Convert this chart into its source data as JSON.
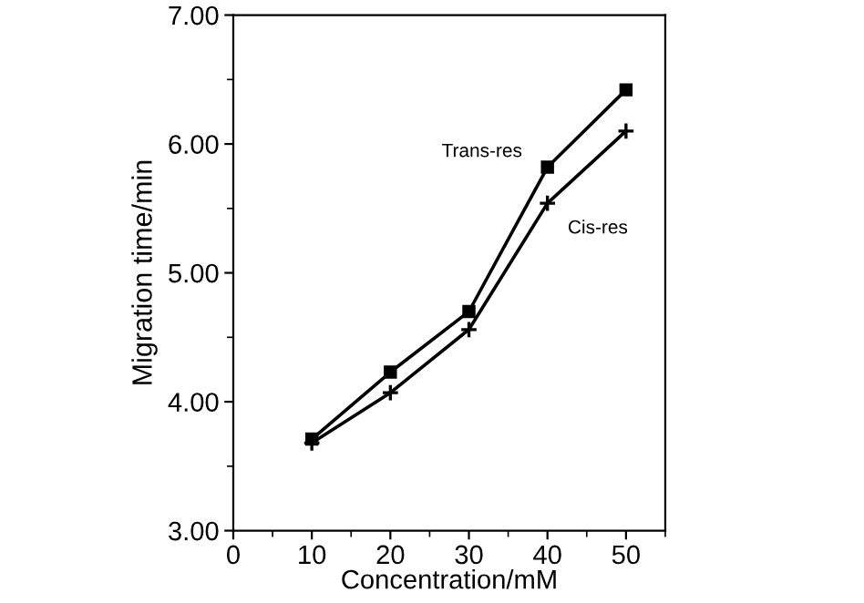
{
  "chart_data": {
    "type": "line",
    "xlabel": "Concentration/mM",
    "ylabel": "Migration time/min",
    "x": [
      10,
      20,
      30,
      40,
      50
    ],
    "series": [
      {
        "name": "Trans-res",
        "color": "#000000",
        "marker": "square",
        "values": [
          3.71,
          4.23,
          4.7,
          5.82,
          6.42
        ]
      },
      {
        "name": "Cis-res",
        "color": "#000000",
        "marker": "cross",
        "values": [
          3.68,
          4.07,
          4.56,
          5.54,
          6.1
        ]
      }
    ],
    "xlim": [
      0,
      55
    ],
    "xticks": [
      0,
      10,
      20,
      30,
      40,
      50
    ],
    "ylim": [
      3,
      7
    ],
    "yticks": [
      {
        "value": 3,
        "label": "3.00"
      },
      {
        "value": 4,
        "label": "4.00"
      },
      {
        "value": 5,
        "label": "5.00"
      },
      {
        "value": 6,
        "label": "6.00"
      },
      {
        "value": 7,
        "label": "7.00"
      }
    ],
    "grid": false,
    "legend": false,
    "line_style": "solid"
  }
}
